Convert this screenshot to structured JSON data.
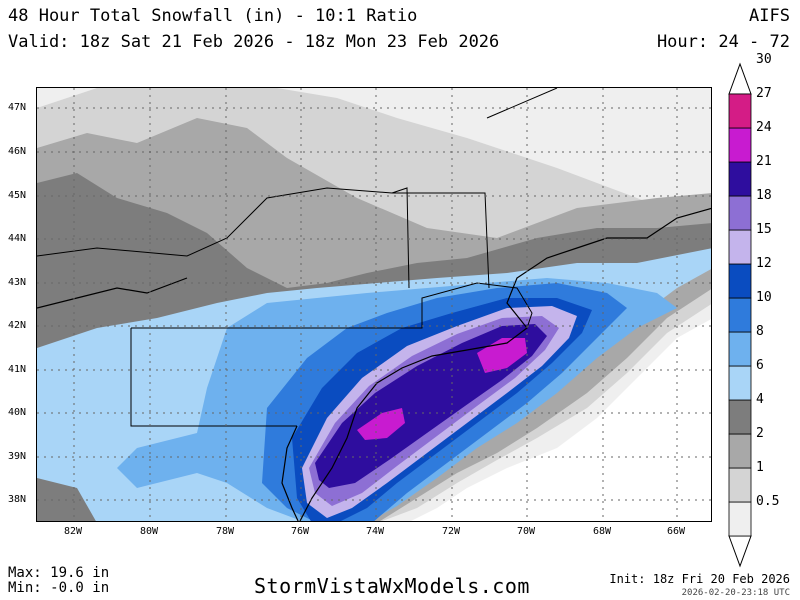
{
  "header": {
    "title": "48 Hour Total Snowfall (in) - 10:1 Ratio",
    "valid": "Valid: 18z Sat 21 Feb 2026 - 18z Mon 23 Feb 2026",
    "model": "AIFS",
    "hour": "Hour: 24 - 72"
  },
  "map": {
    "lat_labels": [
      "47N",
      "46N",
      "45N",
      "44N",
      "43N",
      "42N",
      "41N",
      "40N",
      "39N",
      "38N"
    ],
    "lon_labels": [
      "82W",
      "80W",
      "78W",
      "76W",
      "74W",
      "72W",
      "70W",
      "68W",
      "66W"
    ],
    "colorbar": {
      "levels": [
        "0.5",
        "1",
        "2",
        "4",
        "6",
        "8",
        "10",
        "12",
        "15",
        "18",
        "21",
        "24",
        "27",
        "30"
      ],
      "colors": [
        "#efefef",
        "#d4d4d4",
        "#a8a8a8",
        "#7d7d7d",
        "#a9d5f7",
        "#6eb1ee",
        "#2f7bdc",
        "#0a4cc0",
        "#c4b4ec",
        "#8d6fd4",
        "#2e0d9e",
        "#c81bd0",
        "#d41c86",
        "#d01848",
        "#d10f10"
      ]
    }
  },
  "footer": {
    "max": "Max: 19.6 in",
    "min": "Min: -0.0 in",
    "site": "StormVistaWxModels.com",
    "init": "Init: 18z Fri 20 Feb 2026",
    "stamp": "2026-02-20-23:18 UTC"
  }
}
